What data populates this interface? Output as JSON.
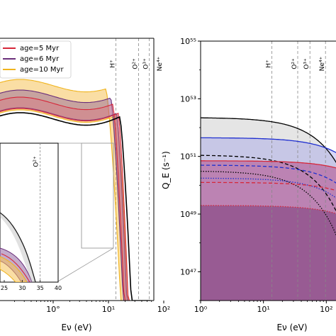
{
  "chart_data": [
    {
      "type": "area",
      "panel": "left",
      "xlabel": "Eν (eV)",
      "xscale": "log",
      "x_ticks": [
        "10°",
        "10¹",
        "10²"
      ],
      "legend": {
        "placement": "top-left",
        "entries": [
          {
            "label": "age=5 Myr",
            "color": "#d62739"
          },
          {
            "label": "age=6 Myr",
            "color": "#6a2e7a"
          },
          {
            "label": "age=10 Myr",
            "color": "#f0b41e"
          }
        ]
      },
      "ion_edges": [
        {
          "label": "H⁺",
          "E": 13.6
        },
        {
          "label": "O²⁺",
          "E": 35.1
        },
        {
          "label": "O³⁺",
          "E": 54.9
        },
        {
          "label": "Ne⁴⁺",
          "E": 97.1
        }
      ],
      "inset": {
        "x_ticks": [
          "25",
          "30",
          "35",
          "40"
        ],
        "edge_label": "O²⁺",
        "edge_E": 35
      }
    },
    {
      "type": "area",
      "panel": "right",
      "xlabel": "Eν (eV)",
      "ylabel": "Q_E (s⁻¹)",
      "xscale": "log",
      "yscale": "log",
      "xlim": [
        1,
        200
      ],
      "ylim": [
        1e+46,
        1e+55
      ],
      "x_ticks": [
        "10⁰",
        "10¹",
        "10²"
      ],
      "y_ticks": [
        "10⁴⁷",
        "10⁴⁹",
        "10⁵¹",
        "10⁵³",
        "10⁵⁵"
      ],
      "ion_edges": [
        {
          "label": "H⁺",
          "E": 13.6
        },
        {
          "label": "O²⁺",
          "E": 35.1
        },
        {
          "label": "O³⁺",
          "E": 54.9
        },
        {
          "label": "Ne⁴⁺",
          "E": 97.1
        }
      ],
      "series": [
        {
          "color": "#000000",
          "style": "solid",
          "log_Q0": 52.35,
          "E_cut": 40
        },
        {
          "color": "#000000",
          "style": "dashed",
          "log_Q0": 51.05,
          "E_cut": 32
        },
        {
          "color": "#000000",
          "style": "dotted",
          "log_Q0": 50.5,
          "E_cut": 28
        },
        {
          "color": "#1f2fd0",
          "style": "solid",
          "log_Q0": 51.65,
          "E_cut": 120
        },
        {
          "color": "#1f2fd0",
          "style": "dashed",
          "log_Q0": 50.7,
          "E_cut": 100
        },
        {
          "color": "#1f2fd0",
          "style": "dotted",
          "log_Q0": 50.25,
          "E_cut": 90
        },
        {
          "color": "#d62739",
          "style": "solid",
          "log_Q0": 50.85,
          "E_cut": 250
        },
        {
          "color": "#d62739",
          "style": "dashed",
          "log_Q0": 50.1,
          "E_cut": 220
        },
        {
          "color": "#d62739",
          "style": "dotted",
          "log_Q0": 49.3,
          "E_cut": 220
        }
      ]
    }
  ]
}
